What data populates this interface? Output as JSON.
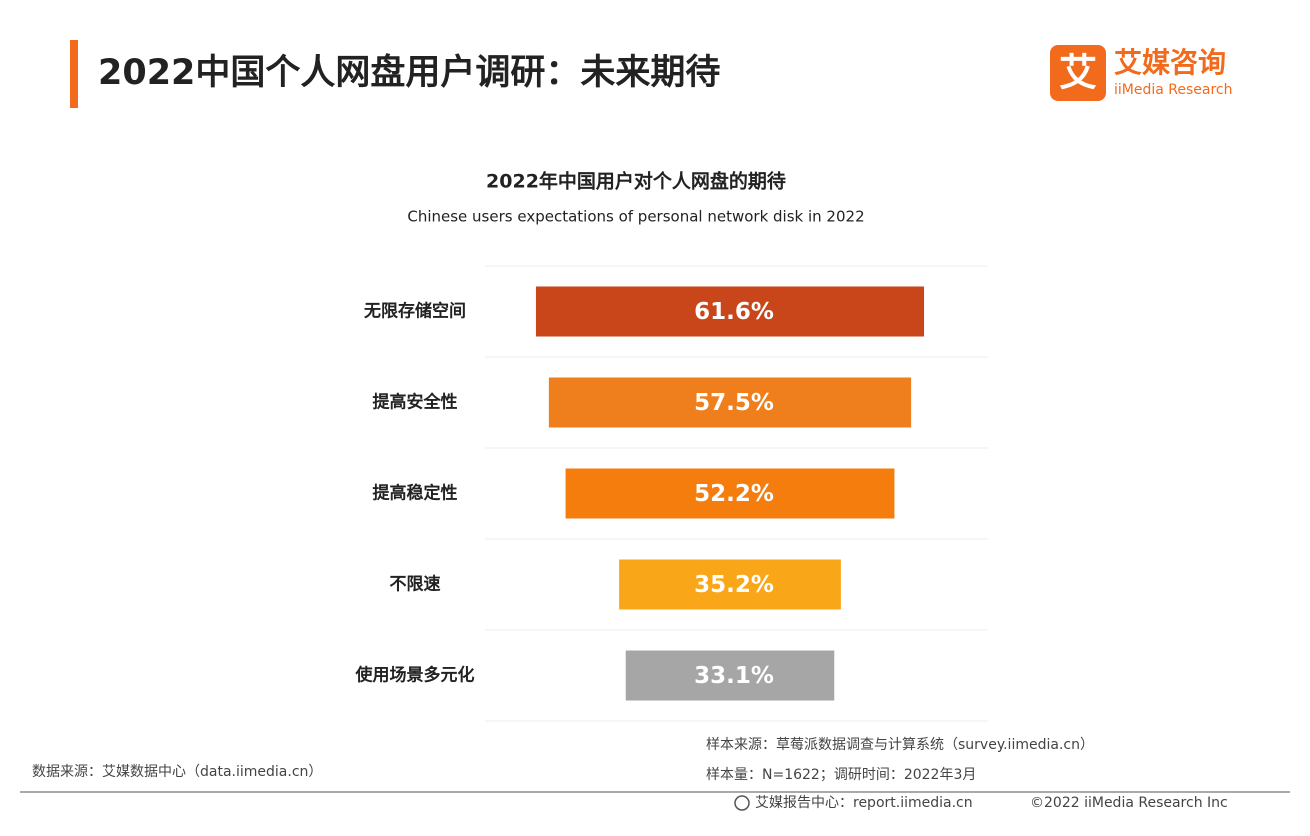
{
  "header": {
    "title": "2022中国个人网盘用户调研：未来期待",
    "logo_icon": "艾",
    "logo_name": "艾媒咨询",
    "logo_en": "iiMedia Research"
  },
  "chart_data": {
    "type": "funnel",
    "title": "2022年中国用户对个人网盘的期待",
    "subtitle": "Chinese users expectations of personal network disk in 2022",
    "categories": [
      "无限存储空间",
      "提高安全性",
      "提高稳定性",
      "不限速",
      "使用场景多元化"
    ],
    "values": [
      61.6,
      57.5,
      52.2,
      35.2,
      33.1
    ],
    "value_labels": [
      "61.6%",
      "57.5%",
      "52.2%",
      "35.2%",
      "33.1%"
    ],
    "colors": [
      "#c9461a",
      "#ee7f1c",
      "#f47d0d",
      "#f9a619",
      "#a6a6a6"
    ]
  },
  "footer": {
    "source": "数据来源：艾媒数据中心（data.iimedia.cn）",
    "sample_source": "样本来源：草莓派数据调查与计算系统（survey.iimedia.cn）",
    "sample_size": "样本量：N=1622；调研时间：2022年3月",
    "report_center": "艾媒报告中心：report.iimedia.cn",
    "copyright": "©2022 iiMedia Research Inc"
  }
}
